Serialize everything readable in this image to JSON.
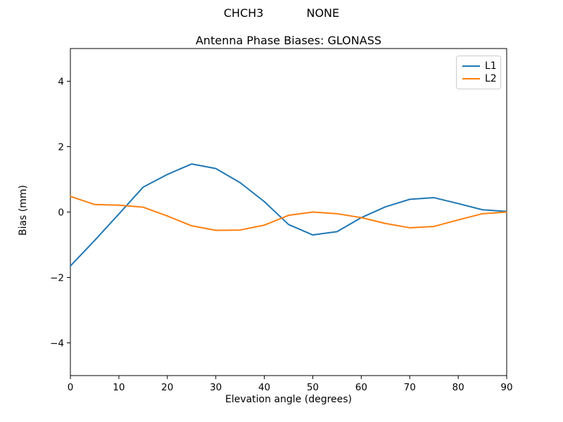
{
  "header": {
    "suptitle": "CHCH3            NONE"
  },
  "chart_data": {
    "type": "line",
    "title": "Antenna Phase Biases: GLONASS",
    "xlabel": "Elevation angle (degrees)",
    "ylabel": "Bias (mm)",
    "xlim": [
      0,
      90
    ],
    "ylim": [
      -5,
      5
    ],
    "xticks": [
      0,
      10,
      20,
      30,
      40,
      50,
      60,
      70,
      80,
      90
    ],
    "yticks": [
      -4,
      -2,
      0,
      2,
      4
    ],
    "grid": false,
    "legend_position": "upper right",
    "x": [
      0,
      5,
      10,
      15,
      20,
      25,
      30,
      35,
      40,
      45,
      50,
      55,
      60,
      65,
      70,
      75,
      80,
      85,
      90
    ],
    "series": [
      {
        "name": "L1",
        "color": "#1f77b4",
        "values": [
          -1.65,
          -0.87,
          -0.06,
          0.76,
          1.15,
          1.47,
          1.33,
          0.9,
          0.32,
          -0.38,
          -0.7,
          -0.6,
          -0.17,
          0.16,
          0.39,
          0.44,
          0.26,
          0.07,
          0.02
        ]
      },
      {
        "name": "L2",
        "color": "#ff7f0e",
        "values": [
          0.48,
          0.23,
          0.21,
          0.15,
          -0.12,
          -0.42,
          -0.56,
          -0.55,
          -0.4,
          -0.1,
          0.0,
          -0.05,
          -0.17,
          -0.35,
          -0.48,
          -0.44,
          -0.24,
          -0.05,
          0.0
        ]
      }
    ]
  }
}
